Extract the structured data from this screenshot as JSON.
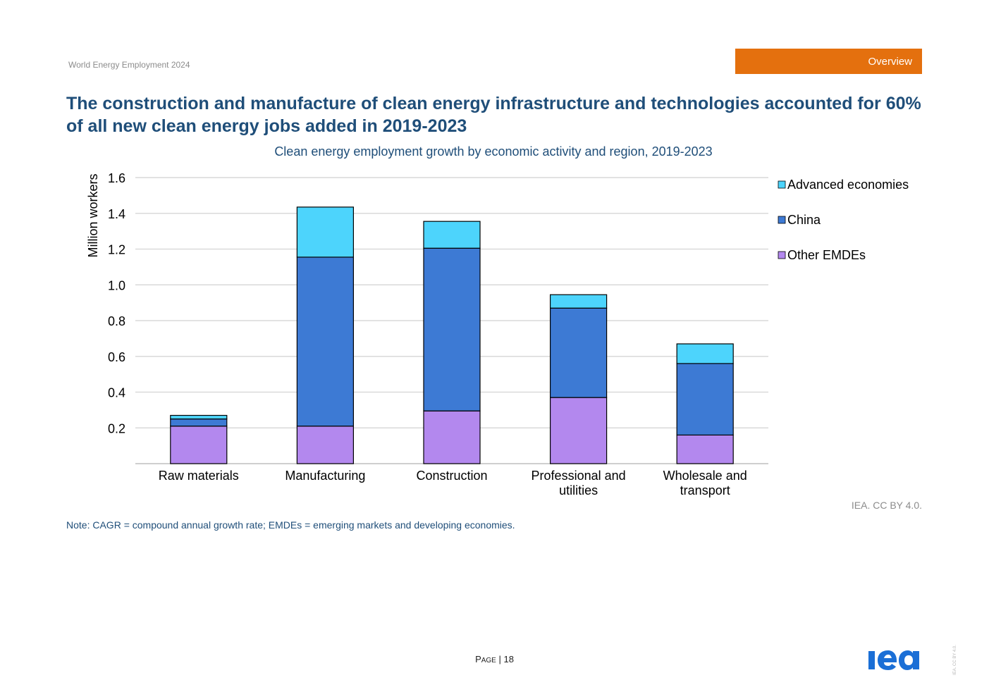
{
  "header": {
    "report_title": "World Energy Employment 2024",
    "section_tab": "Overview"
  },
  "headline": "The construction and manufacture of clean energy infrastructure and technologies accounted for 60% of all new clean energy jobs added in 2019-2023",
  "chart_data": {
    "type": "bar",
    "stacked": true,
    "title": "Clean energy employment growth by economic activity and region, 2019-2023",
    "xlabel": "",
    "ylabel": "Million workers",
    "ylim": [
      0,
      1.6
    ],
    "yticks": [
      "0.2",
      "0.4",
      "0.6",
      "0.8",
      "1.0",
      "1.2",
      "1.4",
      "1.6"
    ],
    "ytick_values": [
      0.2,
      0.4,
      0.6,
      0.8,
      1.0,
      1.2,
      1.4,
      1.6
    ],
    "grid": true,
    "legend_position": "right",
    "categories": [
      [
        "Raw materials"
      ],
      [
        "Manufacturing"
      ],
      [
        "Construction"
      ],
      [
        "Professional and",
        "utilities"
      ],
      [
        "Wholesale and",
        "transport"
      ]
    ],
    "series": [
      {
        "name": "Other EMDEs",
        "color": "#b388ee",
        "values": [
          0.21,
          0.21,
          0.295,
          0.37,
          0.16
        ]
      },
      {
        "name": "China",
        "color": "#3d7ad4",
        "values": [
          0.04,
          0.945,
          0.91,
          0.5,
          0.4
        ]
      },
      {
        "name": "Advanced economies",
        "color": "#4dd4fc",
        "values": [
          0.02,
          0.28,
          0.15,
          0.075,
          0.11
        ]
      }
    ],
    "legend_order": [
      "Advanced economies",
      "China",
      "Other EMDEs"
    ]
  },
  "note": "Note: CAGR = compound annual growth rate; EMDEs = emerging markets and developing economies.",
  "credit": "IEA. CC BY 4.0.",
  "footer": {
    "page_label_first": "P",
    "page_label_rest": "AGE",
    "page_number": "| 18",
    "logo_text": "iea",
    "side_credit": "IEA. CC BY 4.0."
  },
  "colors": {
    "brand_blue": "#1f4e79",
    "tab_orange": "#e4700e",
    "logo_blue": "#1b6fd6"
  }
}
